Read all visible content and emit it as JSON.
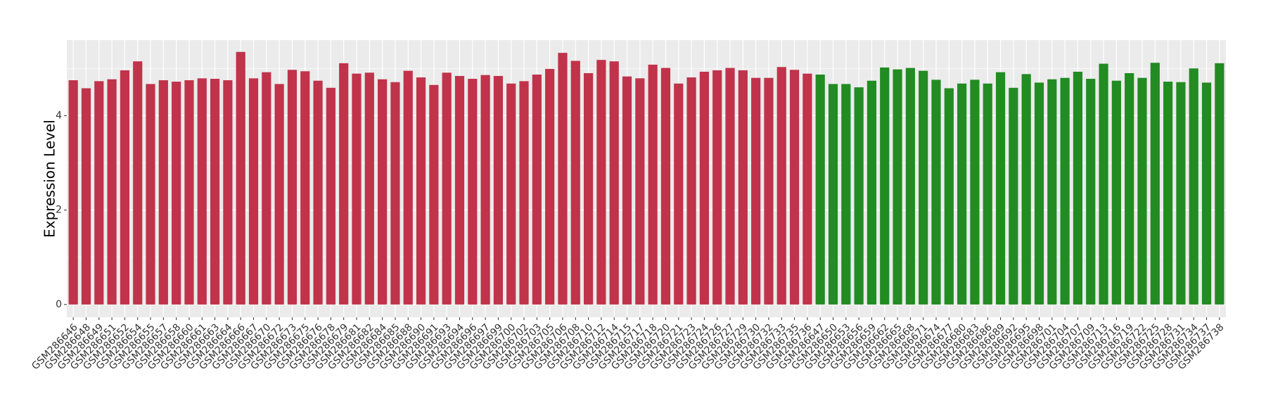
{
  "chart_data": {
    "type": "bar",
    "y_label": "Expression Level",
    "ylim": [
      -0.27,
      5.6
    ],
    "yticks": [
      0,
      2,
      4
    ],
    "grid": true,
    "groups": [
      {
        "color": "#c0334a",
        "categories": [
          "GSM286646",
          "GSM286648",
          "GSM286649",
          "GSM286651",
          "GSM286652",
          "GSM286654",
          "GSM286655",
          "GSM286657",
          "GSM286658",
          "GSM286660",
          "GSM286661",
          "GSM286663",
          "GSM286664",
          "GSM286666",
          "GSM286667",
          "GSM286670",
          "GSM286672",
          "GSM286673",
          "GSM286675",
          "GSM286676",
          "GSM286678",
          "GSM286679",
          "GSM286681",
          "GSM286682",
          "GSM286684",
          "GSM286685",
          "GSM286688",
          "GSM286690",
          "GSM286691",
          "GSM286693",
          "GSM286694",
          "GSM286696",
          "GSM286697",
          "GSM286699",
          "GSM286700",
          "GSM286702",
          "GSM286703",
          "GSM286705",
          "GSM286706",
          "GSM286708",
          "GSM286710",
          "GSM286712",
          "GSM286714",
          "GSM286715",
          "GSM286717",
          "GSM286718",
          "GSM286720",
          "GSM286721",
          "GSM286723",
          "GSM286724",
          "GSM286726",
          "GSM286727",
          "GSM286729",
          "GSM286730",
          "GSM286732",
          "GSM286733",
          "GSM286735",
          "GSM286736"
        ],
        "values": [
          4.75,
          4.58,
          4.73,
          4.77,
          4.96,
          5.15,
          4.67,
          4.75,
          4.72,
          4.75,
          4.79,
          4.78,
          4.75,
          5.35,
          4.79,
          4.92,
          4.67,
          4.97,
          4.94,
          4.74,
          4.59,
          5.11,
          4.89,
          4.91,
          4.77,
          4.71,
          4.95,
          4.81,
          4.65,
          4.91,
          4.84,
          4.78,
          4.86,
          4.84,
          4.68,
          4.73,
          4.87,
          4.99,
          5.33,
          5.16,
          4.9,
          5.18,
          5.15,
          4.83,
          4.79,
          5.08,
          5.01,
          4.68,
          4.81,
          4.93,
          4.96,
          5.01,
          4.96,
          4.8,
          4.8,
          5.03,
          4.97,
          4.89
        ]
      },
      {
        "color": "#228b22",
        "categories": [
          "GSM286647",
          "GSM286650",
          "GSM286653",
          "GSM286656",
          "GSM286659",
          "GSM286662",
          "GSM286665",
          "GSM286668",
          "GSM286671",
          "GSM286674",
          "GSM286677",
          "GSM286680",
          "GSM286683",
          "GSM286686",
          "GSM286689",
          "GSM286692",
          "GSM286695",
          "GSM286698",
          "GSM286701",
          "GSM286704",
          "GSM286707",
          "GSM286709",
          "GSM286713",
          "GSM286716",
          "GSM286719",
          "GSM286722",
          "GSM286725",
          "GSM286728",
          "GSM286731",
          "GSM286734",
          "GSM286737",
          "GSM286738"
        ],
        "values": [
          4.87,
          4.67,
          4.67,
          4.6,
          4.74,
          5.02,
          4.98,
          5.01,
          4.95,
          4.76,
          4.58,
          4.68,
          4.76,
          4.68,
          4.92,
          4.59,
          4.88,
          4.7,
          4.77,
          4.8,
          4.93,
          4.78,
          5.1,
          4.74,
          4.9,
          4.8,
          5.12,
          4.72,
          4.71,
          5.0,
          4.7,
          5.11
        ]
      }
    ]
  }
}
